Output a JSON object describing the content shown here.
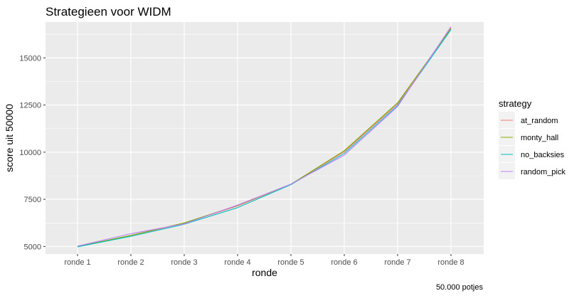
{
  "chart_data": {
    "type": "line",
    "title": "Strategieen voor WIDM",
    "xlabel": "ronde",
    "ylabel": "score uit 50000",
    "caption": "50.000 potjes",
    "categories": [
      "ronde 1",
      "ronde 2",
      "ronde 3",
      "ronde 4",
      "ronde 5",
      "ronde 6",
      "ronde 7",
      "ronde 8"
    ],
    "ylim": [
      4600,
      16900
    ],
    "yticks": [
      5000,
      7500,
      10000,
      12500,
      15000
    ],
    "ytick_labels": [
      "5000",
      "7500",
      "10000",
      "12500",
      "15000"
    ],
    "grid": true,
    "legend": {
      "title": "strategy",
      "position": "right"
    },
    "series": [
      {
        "name": "at_random",
        "color": "#F8766D",
        "values": [
          5000,
          5580,
          6230,
          7150,
          8300,
          10020,
          12560,
          16600
        ]
      },
      {
        "name": "monty_hall",
        "color": "#7CAE00",
        "values": [
          5000,
          5590,
          6250,
          7180,
          8300,
          10080,
          12620,
          16550
        ]
      },
      {
        "name": "no_backsies",
        "color": "#00BFC4",
        "values": [
          4980,
          5540,
          6180,
          7060,
          8280,
          9930,
          12480,
          16500
        ]
      },
      {
        "name": "random_pick",
        "color": "#C77CFF",
        "values": [
          5020,
          5680,
          6200,
          7200,
          8310,
          9840,
          12420,
          16660
        ]
      }
    ]
  }
}
